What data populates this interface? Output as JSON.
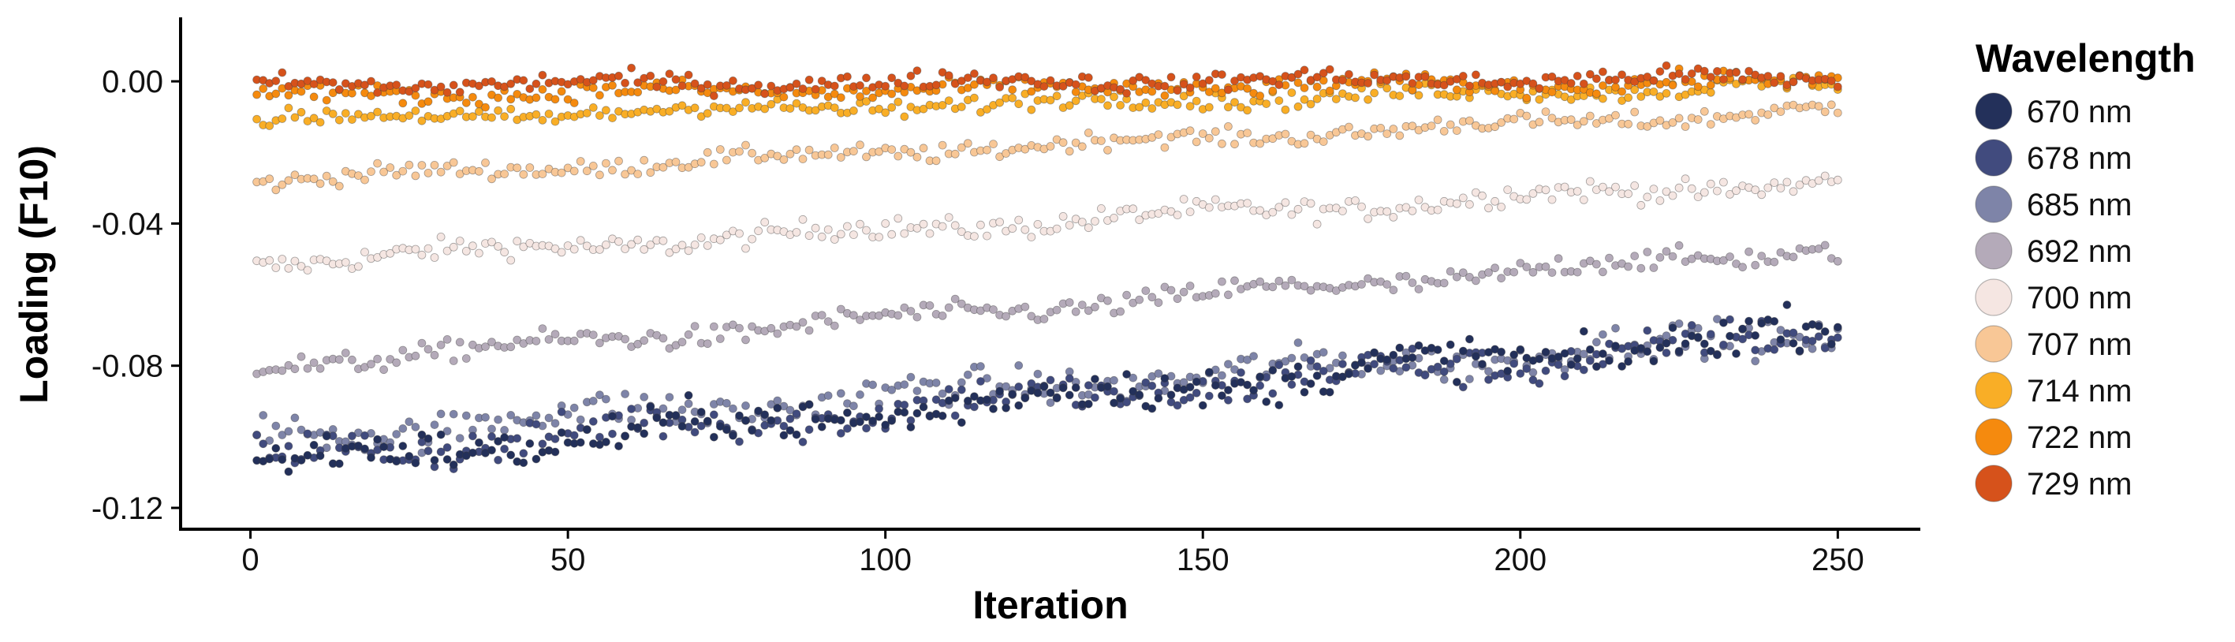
{
  "chart_data": {
    "type": "scatter",
    "xlabel": "Iteration",
    "ylabel": "Loading (F10)",
    "xlim": [
      -11,
      263
    ],
    "ylim": [
      -0.126,
      0.018
    ],
    "x_ticks": [
      0,
      50,
      100,
      150,
      200,
      250
    ],
    "x_tick_labels": [
      "0",
      "50",
      "100",
      "150",
      "200",
      "250"
    ],
    "y_ticks": [
      0.0,
      -0.04,
      -0.08,
      -0.12
    ],
    "y_tick_labels": [
      "0.00",
      "-0.04",
      "-0.08",
      "-0.12"
    ],
    "grid": false,
    "legend": {
      "title": "Wavelength",
      "position": "right"
    },
    "x_range": [
      1,
      250
    ],
    "series": [
      {
        "name": "670 nm",
        "color": "#23305a",
        "start": -0.108,
        "end": -0.07,
        "noise": 0.009
      },
      {
        "name": "678 nm",
        "color": "#414b7e",
        "start": -0.106,
        "end": -0.072,
        "noise": 0.009
      },
      {
        "name": "685 nm",
        "color": "#7e84a8",
        "start": -0.1,
        "end": -0.071,
        "noise": 0.008
      },
      {
        "name": "692 nm",
        "color": "#b4aab9",
        "start": -0.08,
        "end": -0.047,
        "noise": 0.005
      },
      {
        "name": "700 nm",
        "color": "#f5e6e2",
        "start": -0.051,
        "end": -0.028,
        "noise": 0.005
      },
      {
        "name": "707 nm",
        "color": "#f8c796",
        "start": -0.028,
        "end": -0.008,
        "noise": 0.004
      },
      {
        "name": "714 nm",
        "color": "#f9ae26",
        "start": -0.011,
        "end": -0.001,
        "noise": 0.004
      },
      {
        "name": "722 nm",
        "color": "#f58a0e",
        "start": -0.004,
        "end": 0.0,
        "noise": 0.004
      },
      {
        "name": "729 nm",
        "color": "#d6521b",
        "start": -0.001,
        "end": 0.001,
        "noise": 0.004
      }
    ]
  }
}
